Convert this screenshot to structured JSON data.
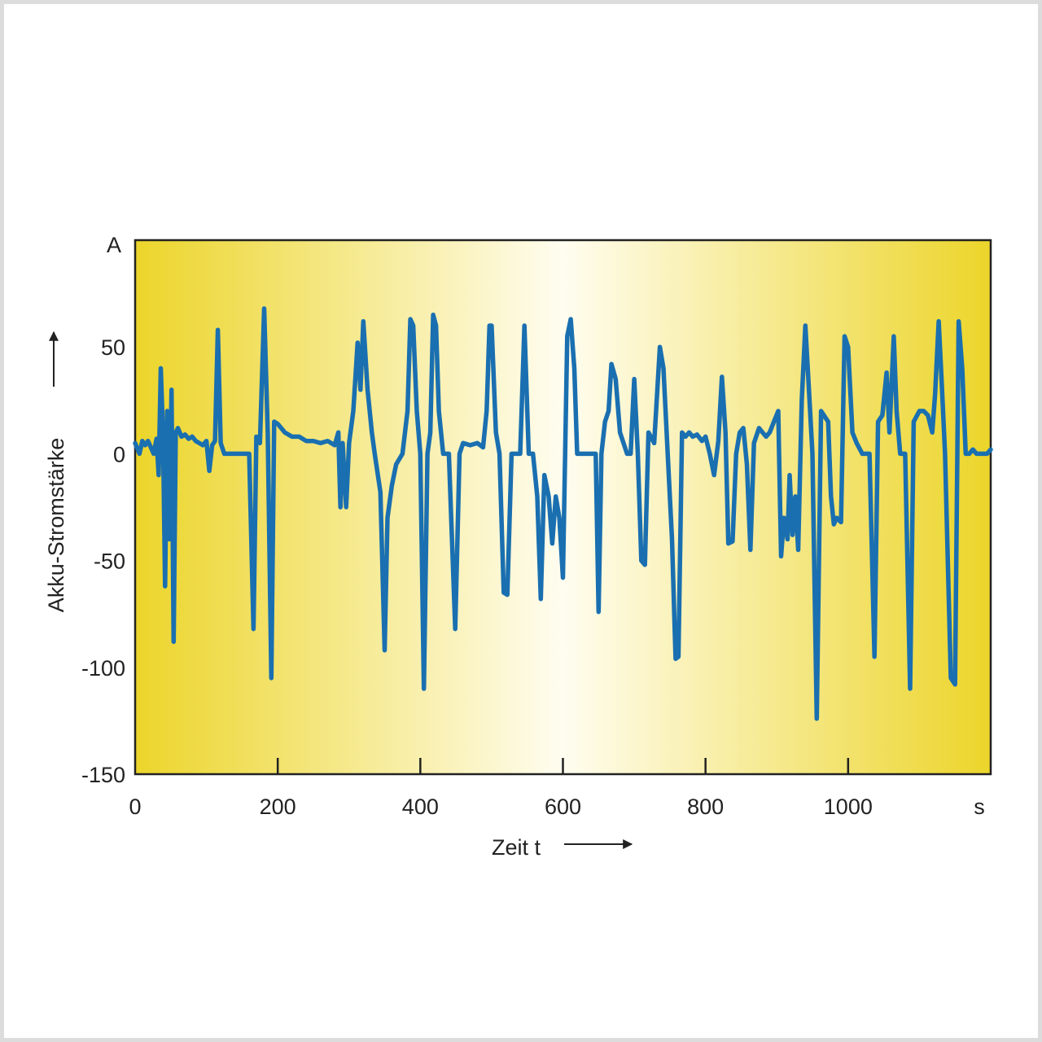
{
  "chart_data": {
    "type": "line",
    "ylabel": "Akku-Stromstärke",
    "y_unit": "A",
    "xlabel": "Zeit t",
    "x_unit": "s",
    "xlim": [
      0,
      1200
    ],
    "ylim": [
      -150,
      100
    ],
    "x_ticks": [
      0,
      200,
      400,
      600,
      800,
      1000
    ],
    "x_tick_labels": [
      "0",
      "200",
      "400",
      "600",
      "800",
      "1000"
    ],
    "y_ticks": [
      50,
      0,
      -50,
      -100,
      -150
    ],
    "y_tick_labels": [
      "50",
      "0",
      "-50",
      "-100",
      "-150"
    ],
    "grid": false,
    "background": "yellow-white-yellow gradient",
    "colors": {
      "line": "#1a6fb0",
      "bg_edge": "#ecd52a",
      "bg_center": "#fffdf0",
      "axis": "#222222"
    },
    "series": [
      {
        "values": [
          [
            0,
            5
          ],
          [
            6,
            0
          ],
          [
            10,
            6
          ],
          [
            14,
            4
          ],
          [
            18,
            6
          ],
          [
            22,
            3
          ],
          [
            26,
            0
          ],
          [
            30,
            7
          ],
          [
            33,
            -10
          ],
          [
            36,
            40
          ],
          [
            39,
            10
          ],
          [
            42,
            -62
          ],
          [
            45,
            20
          ],
          [
            48,
            -40
          ],
          [
            51,
            30
          ],
          [
            54,
            -88
          ],
          [
            57,
            10
          ],
          [
            60,
            12
          ],
          [
            65,
            8
          ],
          [
            70,
            9
          ],
          [
            75,
            7
          ],
          [
            80,
            8
          ],
          [
            85,
            6
          ],
          [
            90,
            5
          ],
          [
            95,
            4
          ],
          [
            100,
            6
          ],
          [
            104,
            -8
          ],
          [
            108,
            4
          ],
          [
            112,
            6
          ],
          [
            116,
            58
          ],
          [
            120,
            5
          ],
          [
            125,
            0
          ],
          [
            140,
            0
          ],
          [
            155,
            0
          ],
          [
            160,
            0
          ],
          [
            166,
            -82
          ],
          [
            170,
            8
          ],
          [
            175,
            5
          ],
          [
            181,
            68
          ],
          [
            186,
            10
          ],
          [
            191,
            -105
          ],
          [
            195,
            15
          ],
          [
            200,
            14
          ],
          [
            210,
            10
          ],
          [
            220,
            8
          ],
          [
            230,
            8
          ],
          [
            240,
            6
          ],
          [
            250,
            6
          ],
          [
            260,
            5
          ],
          [
            270,
            6
          ],
          [
            280,
            4
          ],
          [
            285,
            10
          ],
          [
            288,
            -25
          ],
          [
            291,
            5
          ],
          [
            296,
            -25
          ],
          [
            300,
            5
          ],
          [
            306,
            20
          ],
          [
            312,
            52
          ],
          [
            316,
            30
          ],
          [
            320,
            62
          ],
          [
            326,
            30
          ],
          [
            332,
            10
          ],
          [
            336,
            0
          ],
          [
            344,
            -18
          ],
          [
            350,
            -92
          ],
          [
            354,
            -30
          ],
          [
            360,
            -15
          ],
          [
            366,
            -5
          ],
          [
            375,
            0
          ],
          [
            382,
            20
          ],
          [
            386,
            63
          ],
          [
            390,
            60
          ],
          [
            395,
            20
          ],
          [
            400,
            0
          ],
          [
            405,
            -110
          ],
          [
            410,
            0
          ],
          [
            414,
            10
          ],
          [
            418,
            65
          ],
          [
            422,
            60
          ],
          [
            426,
            20
          ],
          [
            432,
            0
          ],
          [
            440,
            0
          ],
          [
            449,
            -82
          ],
          [
            455,
            0
          ],
          [
            460,
            5
          ],
          [
            470,
            4
          ],
          [
            480,
            5
          ],
          [
            488,
            3
          ],
          [
            493,
            20
          ],
          [
            497,
            60
          ],
          [
            500,
            60
          ],
          [
            506,
            10
          ],
          [
            511,
            0
          ],
          [
            517,
            -65
          ],
          [
            522,
            -66
          ],
          [
            528,
            0
          ],
          [
            540,
            0
          ],
          [
            546,
            60
          ],
          [
            552,
            0
          ],
          [
            558,
            0
          ],
          [
            564,
            -20
          ],
          [
            569,
            -68
          ],
          [
            574,
            -10
          ],
          [
            580,
            -20
          ],
          [
            585,
            -42
          ],
          [
            590,
            -20
          ],
          [
            595,
            -30
          ],
          [
            600,
            -58
          ],
          [
            606,
            55
          ],
          [
            611,
            63
          ],
          [
            616,
            40
          ],
          [
            620,
            0
          ],
          [
            630,
            0
          ],
          [
            640,
            0
          ],
          [
            646,
            0
          ],
          [
            650,
            -74
          ],
          [
            654,
            0
          ],
          [
            659,
            15
          ],
          [
            664,
            20
          ],
          [
            668,
            42
          ],
          [
            674,
            35
          ],
          [
            680,
            10
          ],
          [
            690,
            0
          ],
          [
            695,
            0
          ],
          [
            700,
            35
          ],
          [
            705,
            0
          ],
          [
            710,
            -50
          ],
          [
            715,
            -52
          ],
          [
            720,
            10
          ],
          [
            728,
            5
          ],
          [
            736,
            50
          ],
          [
            741,
            40
          ],
          [
            747,
            0
          ],
          [
            753,
            -40
          ],
          [
            758,
            -96
          ],
          [
            762,
            -95
          ],
          [
            767,
            10
          ],
          [
            772,
            8
          ],
          [
            777,
            10
          ],
          [
            782,
            8
          ],
          [
            788,
            9
          ],
          [
            795,
            6
          ],
          [
            800,
            8
          ],
          [
            806,
            0
          ],
          [
            812,
            -10
          ],
          [
            818,
            6
          ],
          [
            823,
            36
          ],
          [
            828,
            10
          ],
          [
            832,
            -42
          ],
          [
            838,
            -41
          ],
          [
            843,
            0
          ],
          [
            848,
            10
          ],
          [
            853,
            12
          ],
          [
            858,
            -5
          ],
          [
            863,
            -45
          ],
          [
            868,
            5
          ],
          [
            875,
            12
          ],
          [
            880,
            10
          ],
          [
            885,
            8
          ],
          [
            890,
            10
          ],
          [
            896,
            15
          ],
          [
            902,
            20
          ],
          [
            906,
            -48
          ],
          [
            910,
            -30
          ],
          [
            915,
            -40
          ],
          [
            918,
            -10
          ],
          [
            922,
            -38
          ],
          [
            926,
            -20
          ],
          [
            930,
            -45
          ],
          [
            935,
            25
          ],
          [
            940,
            60
          ],
          [
            945,
            30
          ],
          [
            950,
            0
          ],
          [
            956,
            -124
          ],
          [
            962,
            20
          ],
          [
            966,
            18
          ],
          [
            972,
            15
          ],
          [
            976,
            -20
          ],
          [
            980,
            -33
          ],
          [
            984,
            -30
          ],
          [
            990,
            -32
          ],
          [
            995,
            55
          ],
          [
            1000,
            50
          ],
          [
            1006,
            10
          ],
          [
            1012,
            5
          ],
          [
            1020,
            0
          ],
          [
            1030,
            0
          ],
          [
            1037,
            -95
          ],
          [
            1042,
            15
          ],
          [
            1048,
            18
          ],
          [
            1054,
            38
          ],
          [
            1058,
            10
          ],
          [
            1064,
            55
          ],
          [
            1068,
            20
          ],
          [
            1073,
            0
          ],
          [
            1080,
            0
          ],
          [
            1087,
            -110
          ],
          [
            1092,
            15
          ],
          [
            1100,
            20
          ],
          [
            1106,
            20
          ],
          [
            1112,
            18
          ],
          [
            1118,
            10
          ],
          [
            1122,
            28
          ],
          [
            1127,
            62
          ],
          [
            1131,
            35
          ],
          [
            1136,
            0
          ],
          [
            1144,
            -105
          ],
          [
            1150,
            -108
          ],
          [
            1155,
            62
          ],
          [
            1160,
            40
          ],
          [
            1165,
            0
          ],
          [
            1170,
            0
          ],
          [
            1175,
            2
          ],
          [
            1180,
            0
          ],
          [
            1188,
            0
          ],
          [
            1195,
            0
          ],
          [
            1200,
            2
          ]
        ]
      }
    ]
  }
}
